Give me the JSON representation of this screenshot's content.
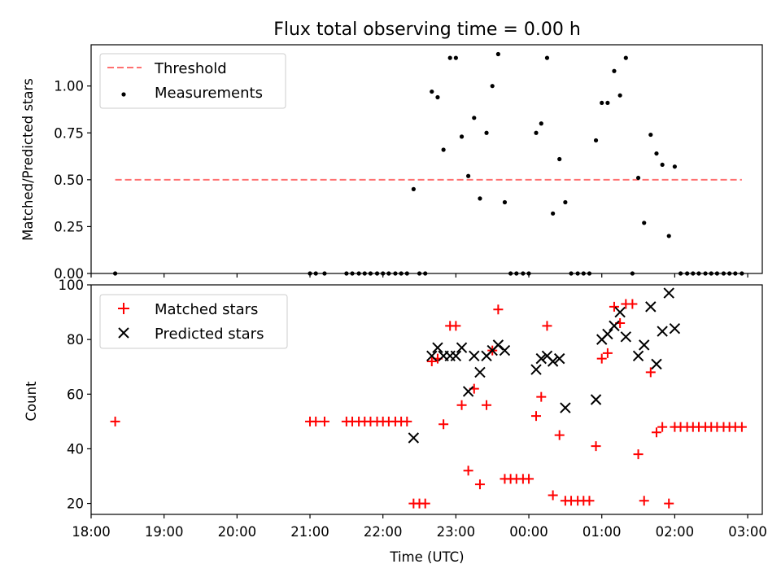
{
  "chart_data": [
    {
      "type": "scatter",
      "title": "Flux total observing time = 0.00 h",
      "ylabel": "Matched/Predicted stars",
      "xlabel": "",
      "xlim": [
        18.0,
        27.2
      ],
      "ylim": [
        0.0,
        1.22
      ],
      "yticks": [
        0.0,
        0.25,
        0.5,
        0.75,
        1.0
      ],
      "ytick_labels": [
        "0.00",
        "0.25",
        "0.50",
        "0.75",
        "1.00"
      ],
      "legend": {
        "location": "upper-left",
        "entries": [
          "Threshold",
          "Measurements"
        ]
      },
      "threshold": {
        "name": "Threshold",
        "value": 0.5,
        "x_range": [
          18.33,
          26.92
        ],
        "color": "#ff7070",
        "style": "dashed"
      },
      "series": [
        {
          "name": "Measurements",
          "color": "#000000",
          "marker": "dot",
          "points": [
            [
              18.33,
              0.0
            ],
            [
              21.0,
              0.0
            ],
            [
              21.08,
              0.0
            ],
            [
              21.2,
              0.0
            ],
            [
              21.5,
              0.0
            ],
            [
              21.58,
              0.0
            ],
            [
              21.67,
              0.0
            ],
            [
              21.75,
              0.0
            ],
            [
              21.83,
              0.0
            ],
            [
              21.92,
              0.0
            ],
            [
              22.0,
              0.0
            ],
            [
              22.08,
              0.0
            ],
            [
              22.17,
              0.0
            ],
            [
              22.25,
              0.0
            ],
            [
              22.33,
              0.0
            ],
            [
              22.42,
              0.45
            ],
            [
              22.5,
              0.0
            ],
            [
              22.58,
              0.0
            ],
            [
              22.67,
              0.97
            ],
            [
              22.75,
              0.94
            ],
            [
              22.83,
              0.66
            ],
            [
              22.92,
              1.15
            ],
            [
              23.0,
              1.15
            ],
            [
              23.08,
              0.73
            ],
            [
              23.17,
              0.52
            ],
            [
              23.25,
              0.83
            ],
            [
              23.33,
              0.4
            ],
            [
              23.42,
              0.75
            ],
            [
              23.5,
              1.0
            ],
            [
              23.58,
              1.17
            ],
            [
              23.67,
              0.38
            ],
            [
              23.75,
              0.0
            ],
            [
              23.83,
              0.0
            ],
            [
              23.92,
              0.0
            ],
            [
              24.0,
              0.0
            ],
            [
              24.1,
              0.75
            ],
            [
              24.17,
              0.8
            ],
            [
              24.25,
              1.15
            ],
            [
              24.33,
              0.32
            ],
            [
              24.42,
              0.61
            ],
            [
              24.5,
              0.38
            ],
            [
              24.58,
              0.0
            ],
            [
              24.67,
              0.0
            ],
            [
              24.75,
              0.0
            ],
            [
              24.83,
              0.0
            ],
            [
              24.92,
              0.71
            ],
            [
              25.0,
              0.91
            ],
            [
              25.08,
              0.91
            ],
            [
              25.17,
              1.08
            ],
            [
              25.25,
              0.95
            ],
            [
              25.33,
              1.15
            ],
            [
              25.42,
              0.0
            ],
            [
              25.5,
              0.51
            ],
            [
              25.58,
              0.27
            ],
            [
              25.67,
              0.74
            ],
            [
              25.75,
              0.64
            ],
            [
              25.83,
              0.58
            ],
            [
              25.92,
              0.2
            ],
            [
              26.0,
              0.57
            ],
            [
              26.08,
              0.0
            ],
            [
              26.17,
              0.0
            ],
            [
              26.25,
              0.0
            ],
            [
              26.33,
              0.0
            ],
            [
              26.42,
              0.0
            ],
            [
              26.5,
              0.0
            ],
            [
              26.58,
              0.0
            ],
            [
              26.67,
              0.0
            ],
            [
              26.75,
              0.0
            ],
            [
              26.83,
              0.0
            ],
            [
              26.92,
              0.0
            ]
          ]
        }
      ]
    },
    {
      "type": "scatter",
      "title": "",
      "xlabel": "Time (UTC)",
      "ylabel": "Count",
      "xlim": [
        18.0,
        27.2
      ],
      "ylim": [
        16,
        100
      ],
      "xticks": [
        18,
        19,
        20,
        21,
        22,
        23,
        24,
        25,
        26,
        27
      ],
      "xtick_labels": [
        "18:00",
        "19:00",
        "20:00",
        "21:00",
        "22:00",
        "23:00",
        "00:00",
        "01:00",
        "02:00",
        "03:00"
      ],
      "yticks": [
        20,
        40,
        60,
        80,
        100
      ],
      "ytick_labels": [
        "20",
        "40",
        "60",
        "80",
        "100"
      ],
      "legend": {
        "location": "upper-left",
        "entries": [
          "Matched stars",
          "Predicted stars"
        ]
      },
      "series": [
        {
          "name": "Matched stars",
          "color": "#ff0000",
          "marker": "plus",
          "points": [
            [
              18.33,
              50
            ],
            [
              21.0,
              50
            ],
            [
              21.08,
              50
            ],
            [
              21.2,
              50
            ],
            [
              21.5,
              50
            ],
            [
              21.58,
              50
            ],
            [
              21.67,
              50
            ],
            [
              21.75,
              50
            ],
            [
              21.83,
              50
            ],
            [
              21.92,
              50
            ],
            [
              22.0,
              50
            ],
            [
              22.08,
              50
            ],
            [
              22.17,
              50
            ],
            [
              22.25,
              50
            ],
            [
              22.33,
              50
            ],
            [
              22.42,
              20
            ],
            [
              22.5,
              20
            ],
            [
              22.58,
              20
            ],
            [
              22.67,
              72
            ],
            [
              22.75,
              73
            ],
            [
              22.83,
              49
            ],
            [
              22.92,
              85
            ],
            [
              23.0,
              85
            ],
            [
              23.08,
              56
            ],
            [
              23.17,
              32
            ],
            [
              23.25,
              62
            ],
            [
              23.33,
              27
            ],
            [
              23.42,
              56
            ],
            [
              23.5,
              76
            ],
            [
              23.58,
              91
            ],
            [
              23.67,
              29
            ],
            [
              23.75,
              29
            ],
            [
              23.83,
              29
            ],
            [
              23.92,
              29
            ],
            [
              24.0,
              29
            ],
            [
              24.1,
              52
            ],
            [
              24.17,
              59
            ],
            [
              24.25,
              85
            ],
            [
              24.33,
              23
            ],
            [
              24.42,
              45
            ],
            [
              24.5,
              21
            ],
            [
              24.58,
              21
            ],
            [
              24.67,
              21
            ],
            [
              24.75,
              21
            ],
            [
              24.83,
              21
            ],
            [
              24.92,
              41
            ],
            [
              25.0,
              73
            ],
            [
              25.08,
              75
            ],
            [
              25.17,
              92
            ],
            [
              25.25,
              86
            ],
            [
              25.33,
              93
            ],
            [
              25.42,
              93
            ],
            [
              25.5,
              38
            ],
            [
              25.58,
              21
            ],
            [
              25.67,
              68
            ],
            [
              25.75,
              46
            ],
            [
              25.83,
              48
            ],
            [
              25.92,
              20
            ],
            [
              26.0,
              48
            ],
            [
              26.08,
              48
            ],
            [
              26.17,
              48
            ],
            [
              26.25,
              48
            ],
            [
              26.33,
              48
            ],
            [
              26.42,
              48
            ],
            [
              26.5,
              48
            ],
            [
              26.58,
              48
            ],
            [
              26.67,
              48
            ],
            [
              26.75,
              48
            ],
            [
              26.83,
              48
            ],
            [
              26.92,
              48
            ]
          ]
        },
        {
          "name": "Predicted stars",
          "color": "#000000",
          "marker": "x",
          "points": [
            [
              22.42,
              44
            ],
            [
              22.67,
              74
            ],
            [
              22.75,
              77
            ],
            [
              22.83,
              74
            ],
            [
              22.92,
              74
            ],
            [
              23.0,
              74
            ],
            [
              23.08,
              77
            ],
            [
              23.17,
              61
            ],
            [
              23.25,
              74
            ],
            [
              23.33,
              68
            ],
            [
              23.42,
              74
            ],
            [
              23.5,
              76
            ],
            [
              23.58,
              78
            ],
            [
              23.67,
              76
            ],
            [
              24.1,
              69
            ],
            [
              24.17,
              73
            ],
            [
              24.25,
              74
            ],
            [
              24.33,
              72
            ],
            [
              24.42,
              73
            ],
            [
              24.5,
              55
            ],
            [
              24.92,
              58
            ],
            [
              25.0,
              80
            ],
            [
              25.08,
              82
            ],
            [
              25.17,
              85
            ],
            [
              25.25,
              90
            ],
            [
              25.33,
              81
            ],
            [
              25.5,
              74
            ],
            [
              25.58,
              78
            ],
            [
              25.67,
              92
            ],
            [
              25.75,
              71
            ],
            [
              25.83,
              83
            ],
            [
              25.92,
              97
            ],
            [
              26.0,
              84
            ]
          ]
        }
      ]
    }
  ]
}
